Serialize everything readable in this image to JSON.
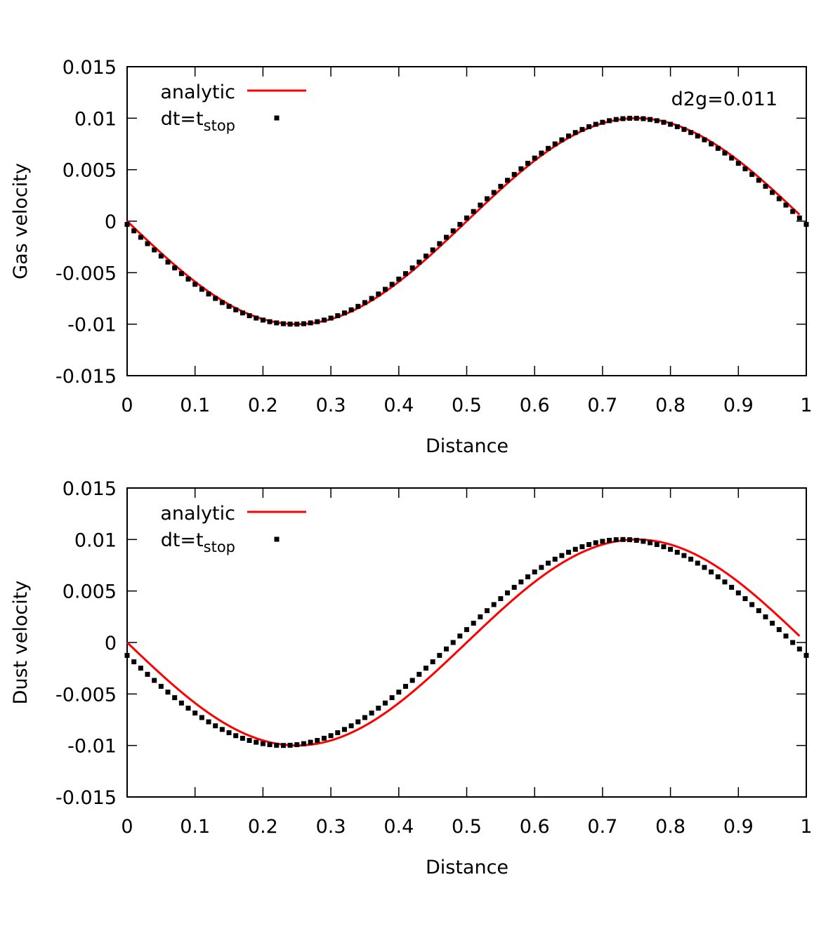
{
  "chart_data": [
    {
      "type": "line",
      "panel": "top",
      "title": "",
      "xlabel": "Distance",
      "ylabel": "Gas velocity",
      "xlim": [
        0,
        1
      ],
      "ylim": [
        -0.015,
        0.015
      ],
      "xticks": [
        0,
        0.1,
        0.2,
        0.3,
        0.4,
        0.5,
        0.6,
        0.7,
        0.8,
        0.9,
        1
      ],
      "xtick_labels": [
        "0",
        "0.1",
        "0.2",
        "0.3",
        "0.4",
        "0.5",
        "0.6",
        "0.7",
        "0.8",
        "0.9",
        "1"
      ],
      "yticks": [
        -0.015,
        -0.01,
        -0.005,
        0,
        0.005,
        0.01,
        0.015
      ],
      "ytick_labels": [
        "-0.015",
        "-0.01",
        "-0.005",
        "0",
        "0.005",
        "0.01",
        "0.015"
      ],
      "grid": false,
      "legend_position": "top-left",
      "annotation": "d2g=0.011",
      "series": [
        {
          "name": "analytic",
          "style": "line",
          "color": "#ff0000",
          "function": "-0.01*sin(2*pi*x)",
          "x_range": [
            0,
            0.99
          ]
        },
        {
          "name": "dt=t_stop",
          "legend_main": "dt=t",
          "legend_sub": "stop",
          "style": "points",
          "color": "#000000",
          "function": "-0.01*sin(2*pi*(x+0.005))",
          "x_range": [
            0,
            1
          ],
          "n_points": 101
        }
      ]
    },
    {
      "type": "line",
      "panel": "bottom",
      "title": "",
      "xlabel": "Distance",
      "ylabel": "Dust velocity",
      "xlim": [
        0,
        1
      ],
      "ylim": [
        -0.015,
        0.015
      ],
      "xticks": [
        0,
        0.1,
        0.2,
        0.3,
        0.4,
        0.5,
        0.6,
        0.7,
        0.8,
        0.9,
        1
      ],
      "xtick_labels": [
        "0",
        "0.1",
        "0.2",
        "0.3",
        "0.4",
        "0.5",
        "0.6",
        "0.7",
        "0.8",
        "0.9",
        "1"
      ],
      "yticks": [
        -0.015,
        -0.01,
        -0.005,
        0,
        0.005,
        0.01,
        0.015
      ],
      "ytick_labels": [
        "-0.015",
        "-0.01",
        "-0.005",
        "0",
        "0.005",
        "0.01",
        "0.015"
      ],
      "grid": false,
      "legend_position": "top-left",
      "annotation": "",
      "series": [
        {
          "name": "analytic",
          "style": "line",
          "color": "#ff0000",
          "function": "-0.01*sin(2*pi*x)",
          "x_range": [
            0,
            0.99
          ]
        },
        {
          "name": "dt=t_stop",
          "legend_main": "dt=t",
          "legend_sub": "stop",
          "style": "points",
          "color": "#000000",
          "function": "-0.01*sin(2*pi*(x+0.02))",
          "x_range": [
            0,
            1
          ],
          "n_points": 101
        }
      ]
    }
  ]
}
